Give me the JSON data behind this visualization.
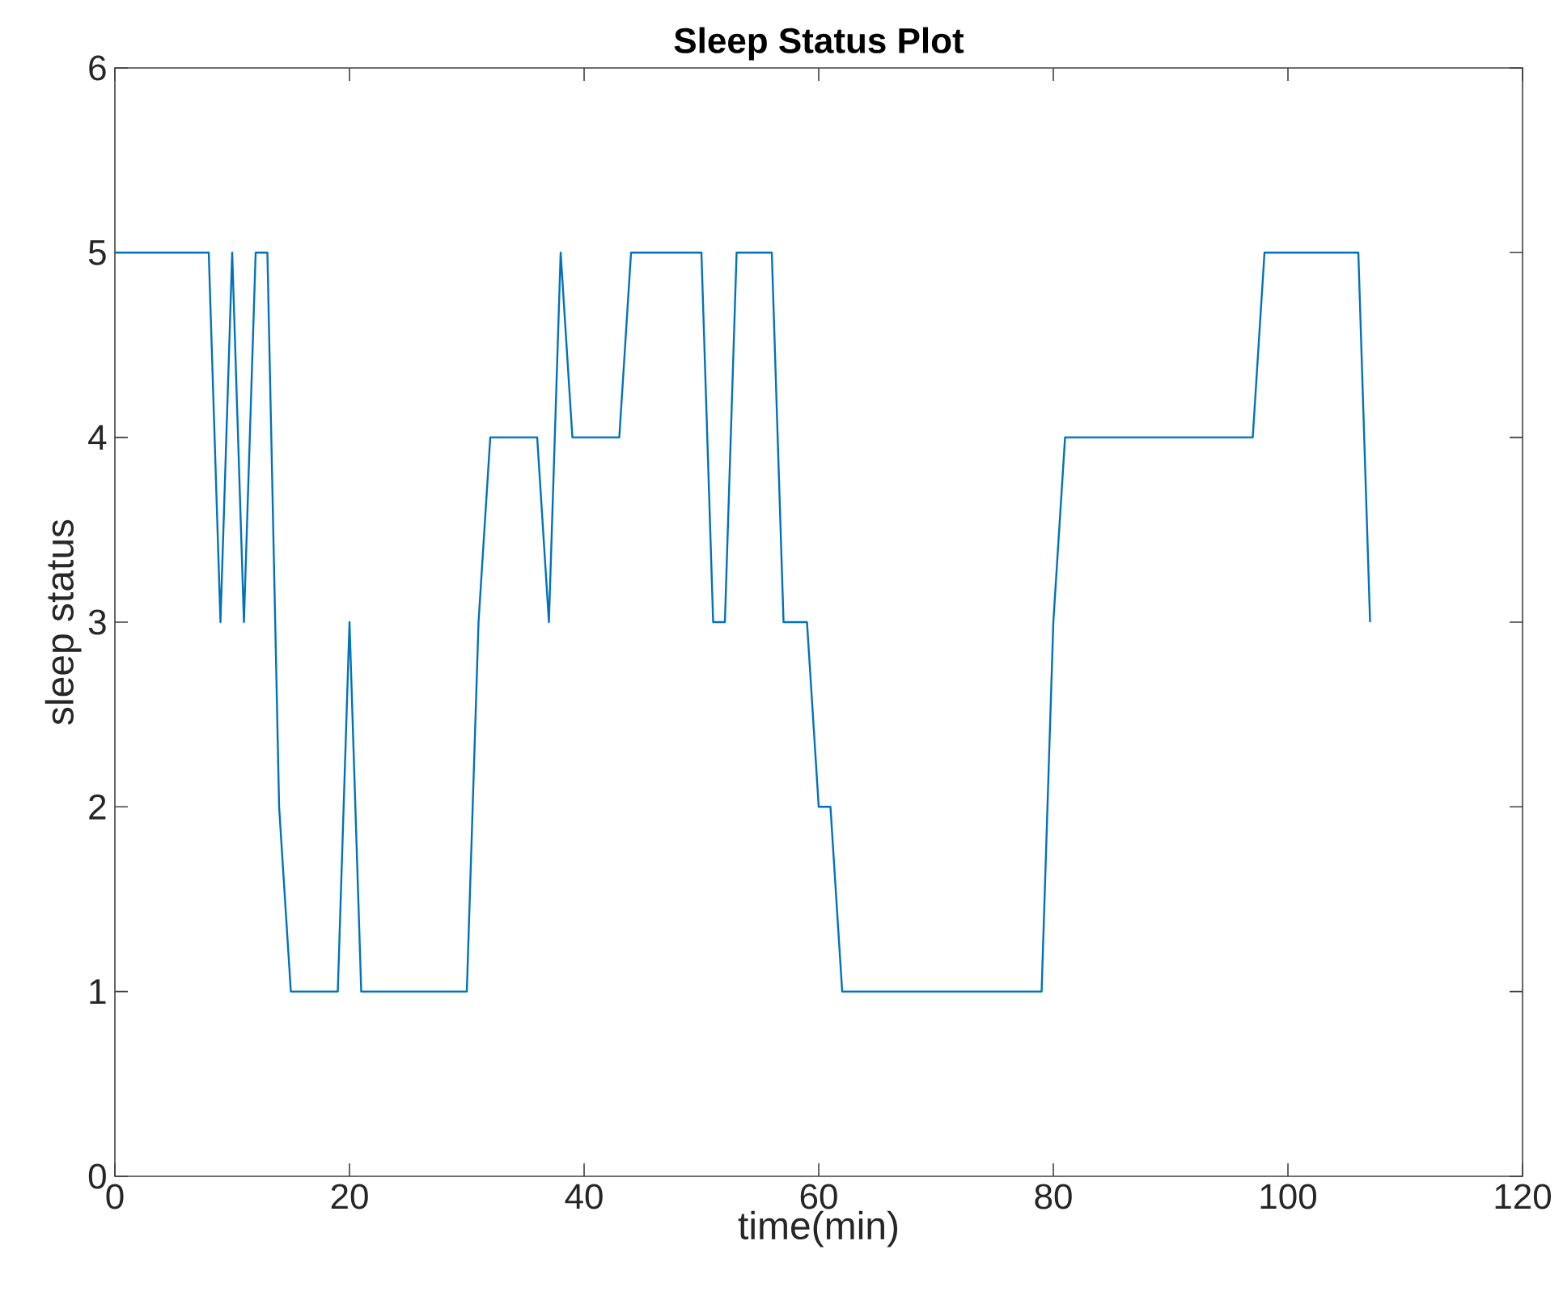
{
  "chart_data": {
    "type": "line",
    "title": "Sleep Status Plot",
    "xlabel": "time(min)",
    "ylabel": "sleep status",
    "xlim": [
      0,
      120
    ],
    "xticks": [
      0,
      20,
      40,
      60,
      80,
      100,
      120
    ],
    "ylim": [
      0,
      6
    ],
    "yticks": [
      0,
      1,
      2,
      3,
      4,
      5,
      6
    ],
    "grid": false,
    "series": [
      {
        "color": "#0072bd",
        "x": [
          0,
          8,
          9,
          10,
          11,
          12,
          13,
          14,
          15,
          19,
          20,
          21,
          30,
          31,
          32,
          36,
          37,
          38,
          39,
          43,
          44,
          50,
          51,
          52,
          53,
          56,
          57,
          59,
          60,
          61,
          62,
          79,
          80,
          81,
          97,
          98,
          106,
          107
        ],
        "values": [
          5,
          5,
          3,
          5,
          3,
          5,
          5,
          2,
          1,
          1,
          3,
          1,
          1,
          3,
          4,
          4,
          3,
          5,
          4,
          4,
          5,
          5,
          3,
          3,
          5,
          5,
          3,
          3,
          2,
          2,
          1,
          1,
          3,
          4,
          4,
          5,
          5,
          3
        ]
      }
    ]
  }
}
